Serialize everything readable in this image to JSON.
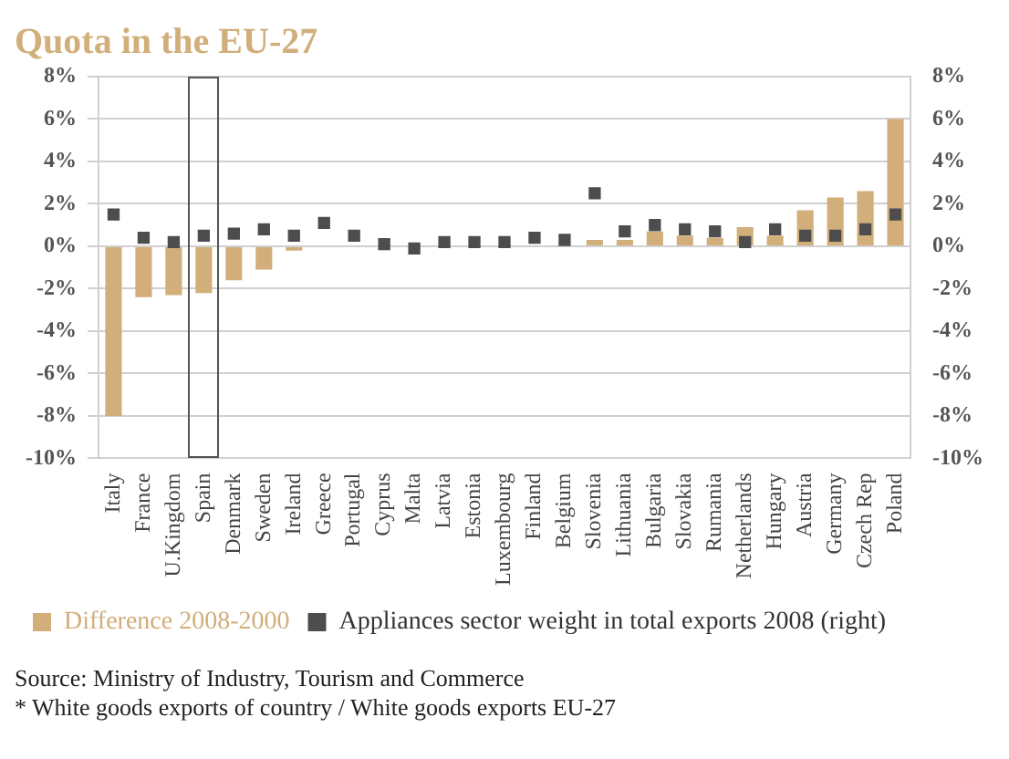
{
  "chart_data": {
    "type": "bar",
    "title": "Quota in the EU-27",
    "categories": [
      "Italy",
      "France",
      "U.Kingdom",
      "Spain",
      "Denmark",
      "Sweden",
      "Ireland",
      "Greece",
      "Portugal",
      "Cyprus",
      "Malta",
      "Latvia",
      "Estonia",
      "Luxembourg",
      "Finland",
      "Belgium",
      "Slovenia",
      "Lithuania",
      "Bulgaria",
      "Slovakia",
      "Rumania",
      "Netherlands",
      "Hungary",
      "Austria",
      "Germany",
      "Czech Rep",
      "Poland"
    ],
    "series": [
      {
        "name": "Difference 2008-2000",
        "color": "#d1ae7a",
        "values": [
          -8.0,
          -2.4,
          -2.3,
          -2.2,
          -1.6,
          -1.1,
          -0.2,
          0,
          0,
          0,
          0,
          0,
          0,
          0,
          0,
          0,
          0.3,
          0.3,
          0.7,
          0.5,
          0.4,
          0.9,
          0.5,
          1.7,
          2.3,
          2.6,
          6.0
        ]
      },
      {
        "name": "Appliances sector weight in total exports 2008 (right)",
        "type": "scatter",
        "marker": "square",
        "color": "#4d4d4f",
        "values": [
          1.5,
          0.4,
          0.2,
          0.5,
          0.6,
          0.8,
          0.5,
          1.1,
          0.5,
          0.1,
          -0.1,
          0.2,
          0.2,
          0.2,
          0.4,
          0.3,
          2.5,
          0.7,
          1.0,
          0.8,
          0.7,
          0.2,
          0.8,
          0.5,
          0.5,
          0.8,
          1.5
        ]
      }
    ],
    "ylim": [
      -10,
      8
    ],
    "yticks": [
      {
        "value": -10,
        "label": "-10%"
      },
      {
        "value": -8,
        "label": "-8%"
      },
      {
        "value": -6,
        "label": "-6%"
      },
      {
        "value": -4,
        "label": "-4%"
      },
      {
        "value": -2,
        "label": "-2%"
      },
      {
        "value": 0,
        "label": "0%"
      },
      {
        "value": 2,
        "label": "2%"
      },
      {
        "value": 4,
        "label": "4%"
      },
      {
        "value": 6,
        "label": "6%"
      },
      {
        "value": 8,
        "label": "8%"
      }
    ],
    "y2lim": [
      -10,
      8
    ],
    "y2ticks": [
      {
        "value": -10,
        "label": "-10%"
      },
      {
        "value": -8,
        "label": "-8%"
      },
      {
        "value": -6,
        "label": "-6%"
      },
      {
        "value": -4,
        "label": "-4%"
      },
      {
        "value": -2,
        "label": "-2%"
      },
      {
        "value": 0,
        "label": "0%"
      },
      {
        "value": 2,
        "label": "2%"
      },
      {
        "value": 4,
        "label": "4%"
      },
      {
        "value": 6,
        "label": "6%"
      },
      {
        "value": 8,
        "label": "8%"
      }
    ],
    "grid": "y",
    "legend": "bottom",
    "annotations": [
      "Source: Ministry of Industry, Tourism and Commerce",
      "* White goods exports of country  / White goods exports EU-27"
    ]
  }
}
